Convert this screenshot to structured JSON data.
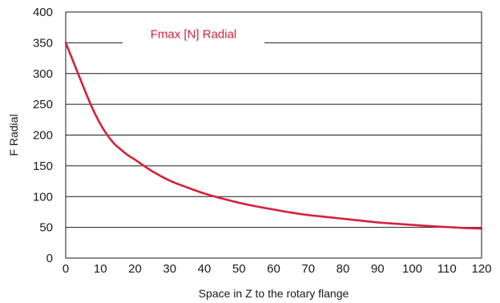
{
  "chart_data": {
    "type": "line",
    "title": "",
    "xlabel": "Space in Z to the rotary flange",
    "ylabel": "F Radial",
    "xlim": [
      0,
      120
    ],
    "ylim": [
      0,
      400
    ],
    "x_ticks": [
      "0",
      "10",
      "20",
      "30",
      "40",
      "50",
      "60",
      "70",
      "80",
      "90",
      "100",
      "110",
      "120"
    ],
    "y_ticks": [
      "0",
      "50",
      "100",
      "150",
      "200",
      "250",
      "300",
      "350",
      "400"
    ],
    "grid": "horizontal",
    "legend_position": "top-center",
    "series": [
      {
        "name": "Fmax [N] Radial",
        "color": "#d6203a",
        "x": [
          0,
          2,
          4,
          6,
          8,
          10,
          12,
          14,
          16,
          18,
          20,
          25,
          30,
          35,
          40,
          45,
          50,
          55,
          60,
          65,
          70,
          75,
          80,
          85,
          90,
          95,
          100,
          105,
          110,
          115,
          120
        ],
        "y": [
          350,
          322,
          294,
          266,
          240,
          218,
          200,
          186,
          176,
          167,
          160,
          141,
          126,
          115,
          105,
          97,
          90,
          84,
          79,
          74,
          70,
          67,
          64,
          61,
          58,
          56,
          54,
          52,
          50.5,
          49,
          48
        ]
      }
    ]
  }
}
